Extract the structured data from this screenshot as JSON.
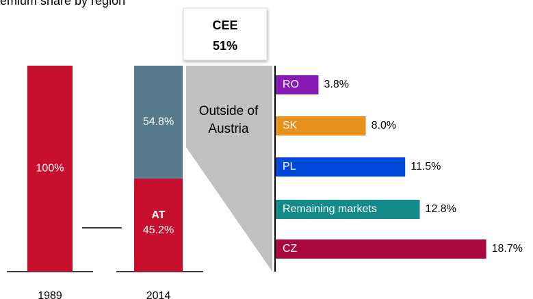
{
  "title": "emium share by region",
  "chart_data": [
    {
      "type": "stacked_bar",
      "categories": [
        "1989",
        "2014"
      ],
      "series": [
        {
          "name": "AT",
          "color": "#c8102e",
          "values": [
            100,
            45.2
          ],
          "value_labels": [
            "100%",
            "45.2%"
          ]
        },
        {
          "name": "Outside of Austria",
          "color": "#587b8b",
          "values": [
            null,
            54.8
          ],
          "value_labels": [
            null,
            "54.8%"
          ]
        }
      ],
      "ylim": [
        0,
        100
      ]
    },
    {
      "type": "hbar",
      "total": {
        "label": "CEE",
        "value": 51,
        "value_label": "51%"
      },
      "categories": [
        "RO",
        "SK",
        "PL",
        "Remaining markets",
        "CZ"
      ],
      "values": [
        3.8,
        8.0,
        11.5,
        12.8,
        18.7
      ],
      "value_labels": [
        "3.8%",
        "8.0%",
        "11.5%",
        "12.8%",
        "18.7%"
      ],
      "colors": [
        "#8a1ab5",
        "#e8911a",
        "#0049d8",
        "#138b8b",
        "#a8083b"
      ]
    }
  ]
}
